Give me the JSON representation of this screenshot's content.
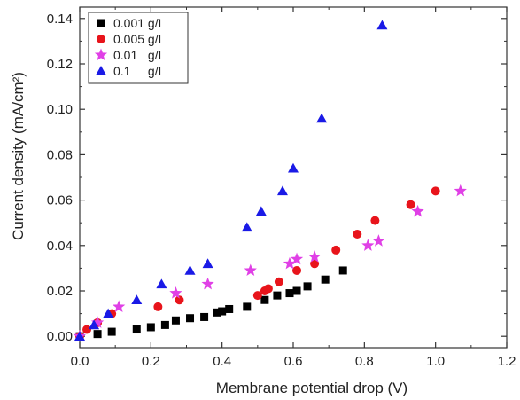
{
  "chart_data": {
    "type": "scatter",
    "title": "",
    "xlabel": "Membrane potential drop (V)",
    "ylabel": "Current density (mA/cm²)",
    "xlim": [
      0.0,
      1.2
    ],
    "ylim": [
      -0.005,
      0.145
    ],
    "x_ticks": [
      0.0,
      0.2,
      0.4,
      0.6,
      0.8,
      1.0,
      1.2
    ],
    "x_tick_labels": [
      "0.0",
      "0.2",
      "0.4",
      "0.6",
      "0.8",
      "1.0",
      "1.2"
    ],
    "y_ticks": [
      0.0,
      0.02,
      0.04,
      0.06,
      0.08,
      0.1,
      0.12,
      0.14
    ],
    "y_tick_labels": [
      "0.00",
      "0.02",
      "0.04",
      "0.06",
      "0.08",
      "0.10",
      "0.12",
      "0.14"
    ],
    "grid": false,
    "legend_position": "top-left",
    "series": [
      {
        "name": "0.001 g/L",
        "marker": "square",
        "color": "#000000",
        "points": [
          [
            0.0,
            0.0
          ],
          [
            0.05,
            0.001
          ],
          [
            0.09,
            0.002
          ],
          [
            0.16,
            0.003
          ],
          [
            0.2,
            0.004
          ],
          [
            0.24,
            0.005
          ],
          [
            0.27,
            0.007
          ],
          [
            0.31,
            0.008
          ],
          [
            0.35,
            0.0085
          ],
          [
            0.385,
            0.0105
          ],
          [
            0.4,
            0.011
          ],
          [
            0.42,
            0.012
          ],
          [
            0.47,
            0.013
          ],
          [
            0.52,
            0.016
          ],
          [
            0.555,
            0.018
          ],
          [
            0.59,
            0.019
          ],
          [
            0.61,
            0.02
          ],
          [
            0.64,
            0.022
          ],
          [
            0.69,
            0.025
          ],
          [
            0.74,
            0.029
          ]
        ]
      },
      {
        "name": "0.005 g/L",
        "marker": "circle",
        "color": "#e8141b",
        "points": [
          [
            0.0,
            0.0
          ],
          [
            0.02,
            0.003
          ],
          [
            0.05,
            0.006
          ],
          [
            0.09,
            0.01
          ],
          [
            0.22,
            0.013
          ],
          [
            0.28,
            0.016
          ],
          [
            0.5,
            0.018
          ],
          [
            0.52,
            0.02
          ],
          [
            0.53,
            0.021
          ],
          [
            0.56,
            0.024
          ],
          [
            0.61,
            0.029
          ],
          [
            0.66,
            0.032
          ],
          [
            0.72,
            0.038
          ],
          [
            0.78,
            0.045
          ],
          [
            0.83,
            0.051
          ],
          [
            0.93,
            0.058
          ],
          [
            1.0,
            0.064
          ]
        ]
      },
      {
        "name": "0.01   g/L",
        "marker": "star",
        "color": "#e040e6",
        "points": [
          [
            0.0,
            0.0
          ],
          [
            0.05,
            0.006
          ],
          [
            0.11,
            0.013
          ],
          [
            0.27,
            0.019
          ],
          [
            0.36,
            0.023
          ],
          [
            0.48,
            0.029
          ],
          [
            0.59,
            0.032
          ],
          [
            0.61,
            0.034
          ],
          [
            0.66,
            0.035
          ],
          [
            0.81,
            0.04
          ],
          [
            0.84,
            0.042
          ],
          [
            0.95,
            0.055
          ],
          [
            1.07,
            0.064
          ]
        ]
      },
      {
        "name": "0.1     g/L",
        "marker": "triangle",
        "color": "#1a1ae6",
        "points": [
          [
            0.0,
            0.0
          ],
          [
            0.04,
            0.005
          ],
          [
            0.08,
            0.01
          ],
          [
            0.16,
            0.016
          ],
          [
            0.23,
            0.023
          ],
          [
            0.31,
            0.029
          ],
          [
            0.36,
            0.032
          ],
          [
            0.47,
            0.048
          ],
          [
            0.51,
            0.055
          ],
          [
            0.57,
            0.064
          ],
          [
            0.6,
            0.074
          ],
          [
            0.68,
            0.096
          ],
          [
            0.85,
            0.137
          ]
        ]
      }
    ]
  }
}
